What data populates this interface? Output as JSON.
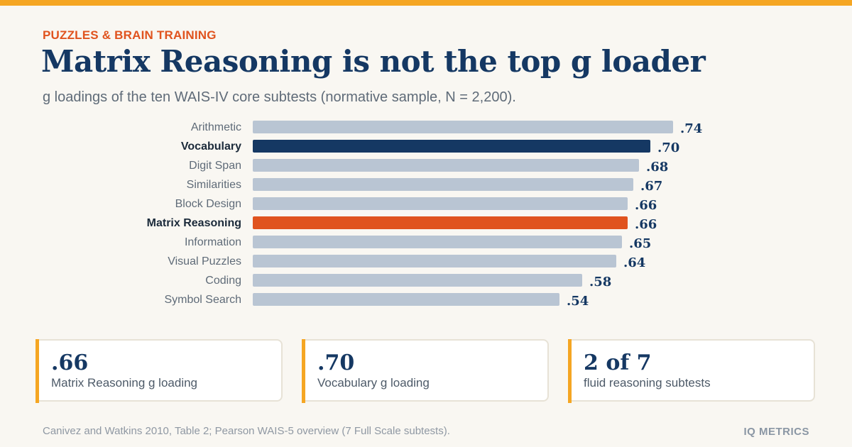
{
  "kicker": "PUZZLES & BRAIN TRAINING",
  "title": "Matrix Reasoning is not the top g loader",
  "subtitle": "g loadings of the ten WAIS-IV core subtests (normative sample, N = 2,200).",
  "colors": {
    "accent_bar": "#f5a623",
    "kicker": "#e0531e",
    "bar_default": "#b9c5d3",
    "bar_vocabulary": "#153863",
    "bar_matrix": "#e0531e",
    "value_text": "#153863"
  },
  "chart_data": {
    "type": "bar",
    "orientation": "horizontal",
    "categories": [
      "Arithmetic",
      "Vocabulary",
      "Digit Span",
      "Similarities",
      "Block Design",
      "Matrix Reasoning",
      "Information",
      "Visual Puzzles",
      "Coding",
      "Symbol Search"
    ],
    "values": [
      0.74,
      0.7,
      0.68,
      0.67,
      0.66,
      0.66,
      0.65,
      0.64,
      0.58,
      0.54
    ],
    "value_labels": [
      ".74",
      ".70",
      ".68",
      ".67",
      ".66",
      ".66",
      ".65",
      ".64",
      ".58",
      ".54"
    ],
    "highlighted": {
      "Vocabulary": "#153863",
      "Matrix Reasoning": "#e0531e"
    },
    "title": "",
    "xlabel": "",
    "ylabel": "",
    "xlim": [
      0,
      0.74
    ],
    "grid": false,
    "legend": "none"
  },
  "stats": [
    {
      "value": ".66",
      "label": "Matrix Reasoning g loading"
    },
    {
      "value": ".70",
      "label": "Vocabulary g loading"
    },
    {
      "value": "2 of 7",
      "label": "fluid reasoning subtests"
    }
  ],
  "footer": {
    "source": "Canivez and Watkins 2010, Table 2; Pearson WAIS-5 overview (7 Full Scale subtests).",
    "brand": "IQ METRICS"
  }
}
